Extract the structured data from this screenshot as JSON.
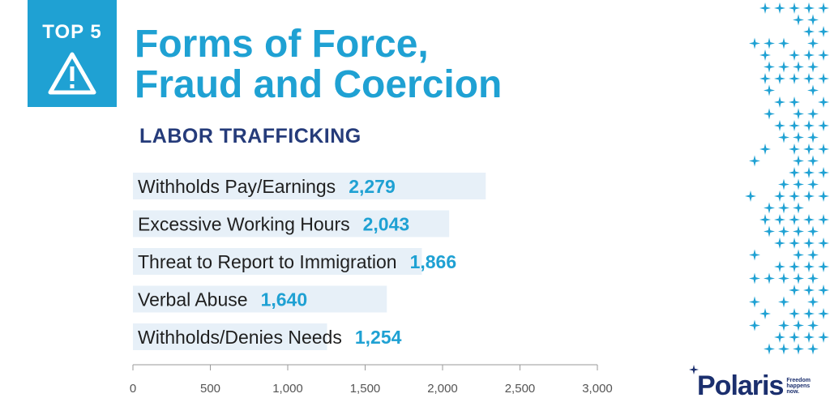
{
  "badge": {
    "text": "TOP 5",
    "icon": "warning-triangle-icon"
  },
  "title": {
    "line1": "Forms of Force,",
    "line2": "Fraud and Coercion"
  },
  "subtitle": "LABOR TRAFFICKING",
  "logo": {
    "word": "Polaris",
    "tagline": "Freedom happens now."
  },
  "colors": {
    "accent": "#1fa1d3",
    "navy": "#253b7a",
    "bar": "#e7f0f8",
    "text": "#1f1f1f"
  },
  "chart_data": {
    "type": "bar",
    "orientation": "horizontal",
    "categories": [
      "Withholds Pay/Earnings",
      "Excessive Working Hours",
      "Threat to Report to Immigration",
      "Verbal Abuse",
      "Withholds/Denies Needs"
    ],
    "values": [
      2279,
      2043,
      1866,
      1640,
      1254
    ],
    "value_labels": [
      "2,279",
      "2,043",
      "1,866",
      "1,640",
      "1,254"
    ],
    "xlim": [
      0,
      3000
    ],
    "xticks": [
      0,
      500,
      1000,
      1500,
      2000,
      2500,
      3000
    ],
    "xtick_labels": [
      "0",
      "500",
      "1,000",
      "1,500",
      "2,000",
      "2,500",
      "3,000"
    ],
    "grid": false,
    "legend": "none"
  }
}
